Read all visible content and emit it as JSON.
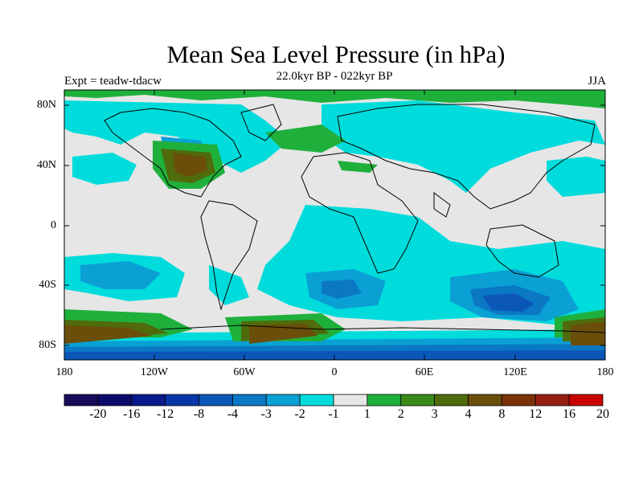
{
  "title": "Mean Sea Level Pressure (in hPa)",
  "left_string": "Expt = teadw-tdacw",
  "center_string": "22.0kyr BP - 022kyr BP",
  "right_string": "JJA",
  "lat_ticks": [
    "80N",
    "40N",
    "0",
    "40S",
    "80S"
  ],
  "lon_ticks": [
    "180",
    "120W",
    "60W",
    "0",
    "60E",
    "120E",
    "180"
  ],
  "colorbar": {
    "labels": [
      "-20",
      "-16",
      "-12",
      "-8",
      "-4",
      "-3",
      "-2",
      "-1",
      "1",
      "2",
      "3",
      "4",
      "8",
      "12",
      "16",
      "20"
    ],
    "colors": [
      "#1a0a5a",
      "#0b0b6e",
      "#0a1a8c",
      "#0836a8",
      "#0a57b8",
      "#0b78c4",
      "#0aa0d4",
      "#00dcdc",
      "#e6e6e6",
      "#1fb03c",
      "#3a8a1a",
      "#4f6b0c",
      "#6a4e0a",
      "#7a3208",
      "#952010",
      "#c80000"
    ]
  }
}
